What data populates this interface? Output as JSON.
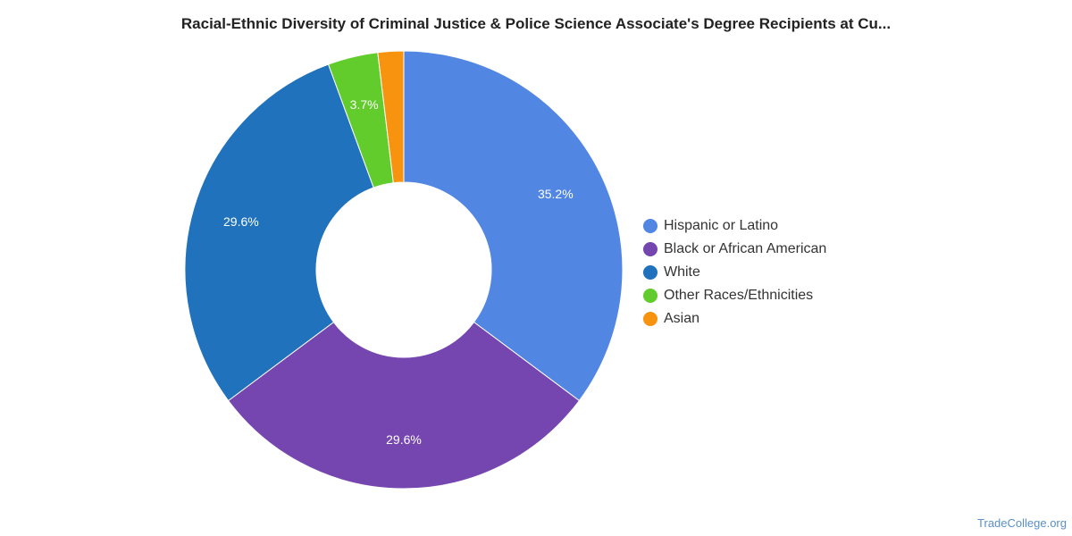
{
  "title": "Racial-Ethnic Diversity of Criminal Justice & Police Science Associate's Degree Recipients at Cu...",
  "watermark": "TradeCollege.org",
  "chart_data": {
    "type": "pie",
    "variant": "donut",
    "legend_position": "right",
    "slices": [
      {
        "label": "Hispanic or Latino",
        "value": 35.2,
        "display": "35.2%",
        "color": "#5286e3"
      },
      {
        "label": "Black or African American",
        "value": 29.6,
        "display": "29.6%",
        "color": "#7546b0"
      },
      {
        "label": "White",
        "value": 29.6,
        "display": "29.6%",
        "color": "#1f72bb"
      },
      {
        "label": "Other Races/Ethnicities",
        "value": 3.7,
        "display": "3.7%",
        "color": "#62cc2c"
      },
      {
        "label": "Asian",
        "value": 1.9,
        "display": "",
        "color": "#f7930e"
      }
    ]
  }
}
